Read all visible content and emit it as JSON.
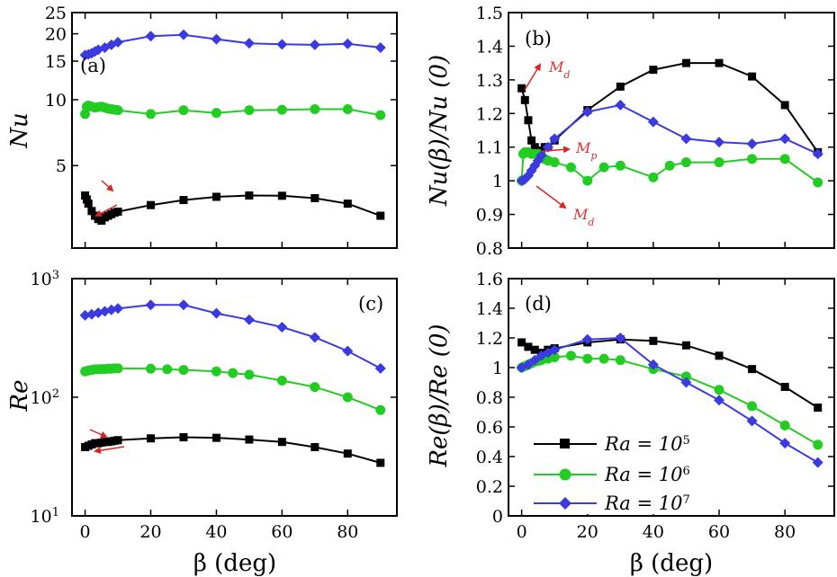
{
  "colors": {
    "Ra1e5": "#000000",
    "Ra1e6": "#22cc22",
    "Ra1e7": "#3a3ae0",
    "annotation": "#dd2222"
  },
  "legend": [
    {
      "key": "Ra1e5",
      "label": "Ra = 10",
      "sup": "5",
      "marker": "square"
    },
    {
      "key": "Ra1e6",
      "label": "Ra = 10",
      "sup": "6",
      "marker": "circle"
    },
    {
      "key": "Ra1e7",
      "label": "Ra = 10",
      "sup": "7",
      "marker": "diamond"
    }
  ],
  "chart_data": [
    {
      "id": "a",
      "panel_label": "(a)",
      "type": "line",
      "yscale": "log",
      "ylabel": "Nu",
      "xlabel": "β (deg)",
      "xlim": [
        -4,
        95
      ],
      "ylim": [
        2.1,
        25
      ],
      "xticks": [
        0,
        20,
        40,
        60,
        80
      ],
      "yticks": [
        {
          "v": 5,
          "label": "5"
        },
        {
          "v": 10,
          "label": "10"
        },
        {
          "v": 15,
          "label": "15"
        },
        {
          "v": 20,
          "label": "20"
        },
        {
          "v": 25,
          "label": "25"
        }
      ],
      "series": [
        {
          "key": "Ra1e5",
          "x": [
            0,
            0.5,
            1,
            2,
            3,
            4,
            5,
            6,
            7,
            8,
            9,
            10,
            20,
            30,
            40,
            50,
            60,
            70,
            80,
            90
          ],
          "y": [
            3.65,
            3.5,
            3.35,
            3.1,
            2.95,
            2.85,
            2.8,
            2.9,
            2.95,
            3.0,
            3.05,
            3.08,
            3.3,
            3.48,
            3.6,
            3.65,
            3.64,
            3.55,
            3.35,
            2.95
          ]
        },
        {
          "key": "Ra1e6",
          "x": [
            0,
            0.5,
            1,
            2,
            3,
            4,
            5,
            6,
            7,
            8,
            9,
            10,
            20,
            30,
            40,
            50,
            60,
            70,
            80,
            90
          ],
          "y": [
            8.6,
            9.3,
            9.4,
            9.3,
            9.2,
            9.25,
            9.3,
            9.2,
            9.1,
            9.05,
            9.0,
            8.95,
            8.6,
            8.95,
            8.7,
            8.95,
            9.0,
            9.05,
            9.05,
            8.5
          ]
        },
        {
          "key": "Ra1e7",
          "x": [
            0,
            1,
            2,
            3,
            4,
            6,
            8,
            10,
            20,
            30,
            40,
            50,
            60,
            70,
            80,
            90
          ],
          "y": [
            16.0,
            16.1,
            16.3,
            16.6,
            16.9,
            17.3,
            17.8,
            18.3,
            19.5,
            19.8,
            18.9,
            18.1,
            17.9,
            17.8,
            18.0,
            17.3
          ]
        }
      ],
      "annotations": []
    },
    {
      "id": "b",
      "panel_label": "(b)",
      "type": "line",
      "yscale": "linear",
      "ylabel": "Nu(β)/Nu (0)",
      "xlabel": "β (deg)",
      "xlim": [
        -4,
        95
      ],
      "ylim": [
        0.8,
        1.5
      ],
      "xticks": [
        0,
        20,
        40,
        60,
        80
      ],
      "yticks": [
        {
          "v": 0.8,
          "label": "0.8"
        },
        {
          "v": 0.9,
          "label": "0.9"
        },
        {
          "v": 1.0,
          "label": "1"
        },
        {
          "v": 1.1,
          "label": "1.1"
        },
        {
          "v": 1.2,
          "label": "1.2"
        },
        {
          "v": 1.3,
          "label": "1.3"
        },
        {
          "v": 1.4,
          "label": "1.4"
        },
        {
          "v": 1.5,
          "label": "1.5"
        }
      ],
      "series": [
        {
          "key": "Ra1e5",
          "x": [
            0,
            1,
            2,
            3,
            4,
            5,
            6,
            7,
            8,
            10,
            20,
            30,
            40,
            50,
            60,
            70,
            80,
            90
          ],
          "y": [
            1.275,
            1.24,
            1.18,
            1.12,
            1.1,
            1.09,
            1.08,
            1.1,
            1.1,
            1.12,
            1.21,
            1.28,
            1.33,
            1.35,
            1.35,
            1.31,
            1.225,
            1.085
          ]
        },
        {
          "key": "Ra1e6",
          "x": [
            0,
            0.5,
            1,
            2,
            3,
            4,
            5,
            6,
            7,
            8,
            10,
            15,
            20,
            25,
            30,
            40,
            45,
            50,
            60,
            70,
            80,
            90
          ],
          "y": [
            1.0,
            1.08,
            1.085,
            1.085,
            1.08,
            1.08,
            1.08,
            1.075,
            1.065,
            1.06,
            1.055,
            1.04,
            1.0,
            1.04,
            1.045,
            1.01,
            1.045,
            1.055,
            1.055,
            1.065,
            1.065,
            0.995
          ]
        },
        {
          "key": "Ra1e7",
          "x": [
            0,
            1,
            2,
            3,
            4,
            5,
            6,
            8,
            10,
            20,
            30,
            40,
            50,
            60,
            70,
            80,
            90
          ],
          "y": [
            1.0,
            1.005,
            1.015,
            1.03,
            1.045,
            1.06,
            1.075,
            1.1,
            1.125,
            1.205,
            1.225,
            1.175,
            1.125,
            1.115,
            1.11,
            1.125,
            1.08
          ]
        }
      ],
      "annotations": [
        {
          "label": "M",
          "sub": "d"
        },
        {
          "label": "M",
          "sub": "p"
        },
        {
          "label": "M",
          "sub": "d"
        }
      ]
    },
    {
      "id": "c",
      "panel_label": "(c)",
      "type": "line",
      "yscale": "log",
      "ylabel": "Re",
      "xlabel": "β (deg)",
      "xlim": [
        -4,
        95
      ],
      "ylim": [
        10,
        1000
      ],
      "xticks": [
        0,
        20,
        40,
        60,
        80
      ],
      "yticks": [
        {
          "v": 10,
          "label": "10",
          "sup": "1"
        },
        {
          "v": 100,
          "label": "10",
          "sup": "2"
        },
        {
          "v": 1000,
          "label": "10",
          "sup": "3"
        }
      ],
      "series": [
        {
          "key": "Ra1e5",
          "x": [
            0,
            1,
            2,
            3,
            4,
            5,
            6,
            7,
            8,
            9,
            10,
            20,
            30,
            40,
            50,
            60,
            70,
            80,
            90
          ],
          "y": [
            38,
            39,
            40,
            41,
            41,
            41.5,
            42,
            42,
            42.5,
            43,
            43.5,
            45,
            46,
            45.5,
            44,
            42,
            38,
            33.5,
            28
          ]
        },
        {
          "key": "Ra1e6",
          "x": [
            0,
            1,
            2,
            3,
            4,
            5,
            6,
            7,
            8,
            9,
            10,
            20,
            25,
            30,
            40,
            45,
            50,
            60,
            70,
            80,
            90
          ],
          "y": [
            165,
            168,
            170,
            172,
            172,
            173,
            173,
            174,
            174,
            175,
            175,
            174,
            172,
            170,
            165,
            160,
            155,
            138,
            122,
            100,
            78
          ]
        },
        {
          "key": "Ra1e7",
          "x": [
            0,
            2,
            4,
            6,
            8,
            10,
            20,
            30,
            40,
            50,
            60,
            70,
            80,
            90
          ],
          "y": [
            490,
            500,
            515,
            530,
            545,
            560,
            600,
            600,
            510,
            450,
            390,
            320,
            245,
            175
          ]
        }
      ],
      "annotations": []
    },
    {
      "id": "d",
      "panel_label": "(d)",
      "type": "line",
      "yscale": "linear",
      "ylabel": "Re(β)/Re (0)",
      "xlabel": "β (deg)",
      "xlim": [
        -4,
        95
      ],
      "ylim": [
        0,
        1.6
      ],
      "xticks": [
        0,
        20,
        40,
        60,
        80
      ],
      "yticks": [
        {
          "v": 0,
          "label": "0"
        },
        {
          "v": 0.2,
          "label": "0.2"
        },
        {
          "v": 0.4,
          "label": "0.4"
        },
        {
          "v": 0.6,
          "label": "0.6"
        },
        {
          "v": 0.8,
          "label": "0.8"
        },
        {
          "v": 1.0,
          "label": "1"
        },
        {
          "v": 1.2,
          "label": "1.2"
        },
        {
          "v": 1.4,
          "label": "1.4"
        },
        {
          "v": 1.6,
          "label": "1.6"
        }
      ],
      "series": [
        {
          "key": "Ra1e5",
          "x": [
            0,
            2,
            4,
            6,
            8,
            10,
            20,
            30,
            40,
            50,
            60,
            70,
            80,
            90
          ],
          "y": [
            1.17,
            1.14,
            1.12,
            1.1,
            1.12,
            1.13,
            1.17,
            1.19,
            1.18,
            1.15,
            1.08,
            0.99,
            0.87,
            0.73
          ]
        },
        {
          "key": "Ra1e6",
          "x": [
            0,
            1,
            2,
            3,
            4,
            5,
            6,
            8,
            10,
            15,
            20,
            25,
            30,
            40,
            50,
            60,
            70,
            80,
            90
          ],
          "y": [
            1.0,
            1.01,
            1.02,
            1.03,
            1.04,
            1.045,
            1.05,
            1.06,
            1.07,
            1.08,
            1.06,
            1.06,
            1.05,
            0.99,
            0.94,
            0.85,
            0.74,
            0.61,
            0.48
          ]
        },
        {
          "key": "Ra1e7",
          "x": [
            0,
            2,
            4,
            6,
            8,
            10,
            20,
            30,
            40,
            50,
            60,
            70,
            80,
            90
          ],
          "y": [
            1.0,
            1.02,
            1.05,
            1.08,
            1.1,
            1.12,
            1.19,
            1.2,
            1.02,
            0.9,
            0.78,
            0.64,
            0.49,
            0.36
          ]
        }
      ],
      "annotations": []
    }
  ]
}
